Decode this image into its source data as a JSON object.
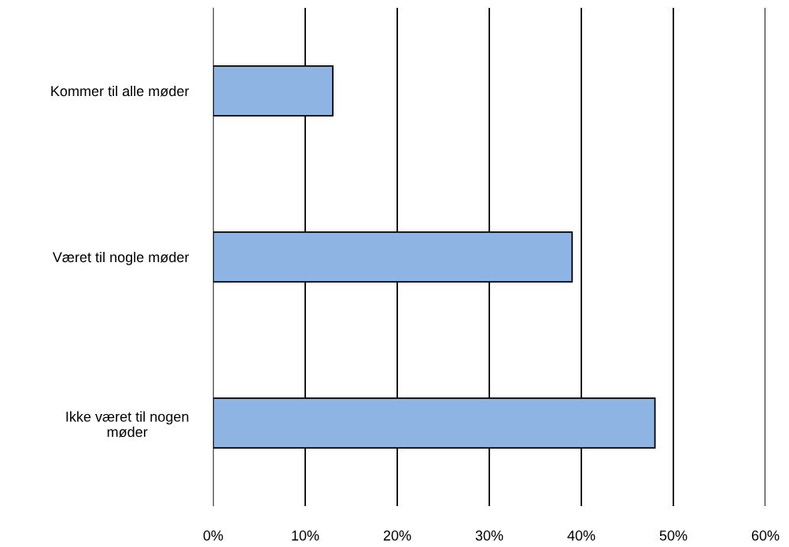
{
  "chart_data": {
    "type": "bar",
    "orientation": "horizontal",
    "categories": [
      "Kommer til alle møder",
      "Været til nogle møder",
      "Ikke været til nogen\nmøder"
    ],
    "values": [
      13,
      39,
      48
    ],
    "color": "#8eb4e3",
    "xlim": [
      0,
      60
    ],
    "xticks": [
      {
        "value": 0,
        "label": "0%"
      },
      {
        "value": 10,
        "label": "10%"
      },
      {
        "value": 20,
        "label": "20%"
      },
      {
        "value": 30,
        "label": "30%"
      },
      {
        "value": 40,
        "label": "40%"
      },
      {
        "value": 50,
        "label": "50%"
      },
      {
        "value": 60,
        "label": "60%"
      }
    ],
    "grid": "x",
    "legend": false
  }
}
